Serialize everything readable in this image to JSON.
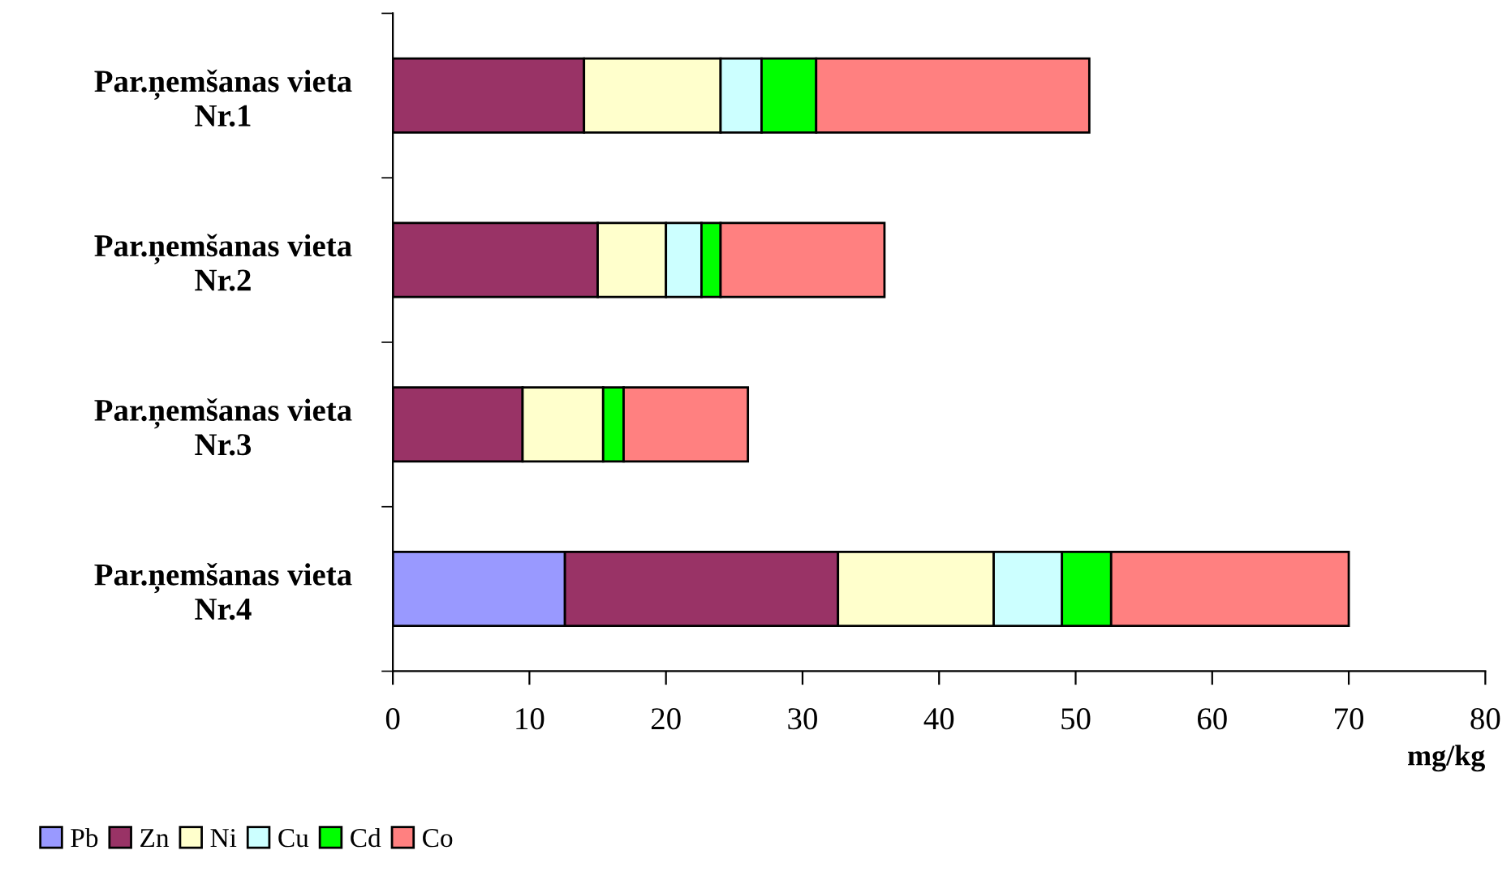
{
  "chart_data": {
    "type": "bar",
    "orientation": "horizontal",
    "stacked": true,
    "categories": [
      "Par.ņemšanas vieta Nr.1",
      "Par.ņemšanas vieta Nr.2",
      "Par.ņemšanas vieta Nr.3",
      "Par.ņemšanas vieta Nr.4"
    ],
    "series": [
      {
        "name": "Pb",
        "color": "#9999ff",
        "values": [
          null,
          null,
          null,
          12.6
        ]
      },
      {
        "name": "Zn",
        "color": "#993366",
        "values": [
          14,
          15,
          9.5,
          20
        ]
      },
      {
        "name": "Ni",
        "color": "#ffffcc",
        "values": [
          10,
          5,
          5.9,
          11.4
        ]
      },
      {
        "name": "Cu",
        "color": "#ccffff",
        "values": [
          3,
          2.6,
          null,
          5
        ]
      },
      {
        "name": "Cd",
        "color": "#00ff00",
        "values": [
          4,
          1.4,
          1.5,
          3.6
        ]
      },
      {
        "name": "Co",
        "color": "#ff8080",
        "values": [
          20,
          12,
          9.1,
          17.4
        ]
      }
    ],
    "xlabel": "mg/kg",
    "xlim": [
      0,
      80
    ],
    "xticks": [
      0,
      10,
      20,
      30,
      40,
      50,
      60,
      70,
      80
    ],
    "grid": false,
    "legend": "bottom left"
  }
}
